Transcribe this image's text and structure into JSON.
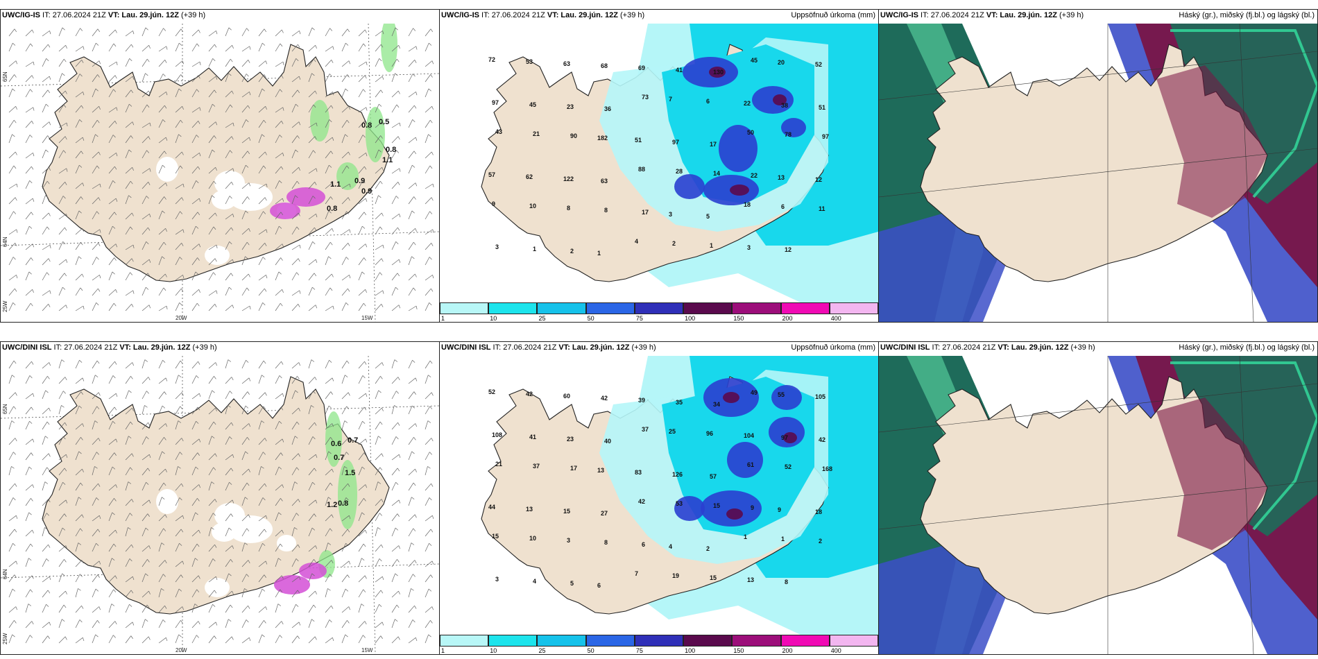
{
  "rows": [
    {
      "model": "UWC/IG-IS",
      "wind": {
        "model": "UWC/IG-IS",
        "info": " IT: 27.06.2024 21Z ",
        "vt_label": "VT: Lau. 29.jún. 12Z",
        "lead": " (+39 h)",
        "ticks_x": [
          "20W",
          "15W"
        ],
        "ticks_y": [
          "65N",
          "64N",
          "25W"
        ],
        "gust_labels": [
          "0.8",
          "0.5",
          "0.8",
          "1.1",
          "0.9",
          "0.8",
          "1.1",
          "0.9"
        ]
      },
      "precip": {
        "model": "UWC/IG-IS",
        "info": " IT: 27.06.2024 21Z ",
        "vt_label": "VT: Lau. 29.jún. 12Z",
        "lead": " (+39 h)",
        "right_title": "Uppsöfnuð úrkoma (mm)",
        "values": [
          "72",
          "53",
          "63",
          "68",
          "69",
          "41",
          "130",
          "45",
          "20",
          "52",
          "97",
          "45",
          "23",
          "36",
          "73",
          "7",
          "6",
          "22",
          "38",
          "51",
          "43",
          "21",
          "90",
          "182",
          "51",
          "97",
          "17",
          "50",
          "78",
          "97",
          "57",
          "62",
          "122",
          "63",
          "88",
          "28",
          "14",
          "22",
          "13",
          "12",
          "9",
          "10",
          "8",
          "8",
          "17",
          "3",
          "5",
          "18",
          "6",
          "11",
          "3",
          "1",
          "2",
          "1",
          "4",
          "2",
          "1",
          "3",
          "12"
        ]
      },
      "clouds": {
        "model": "UWC/IG-IS",
        "info": " IT: 27.06.2024 21Z ",
        "vt_label": "VT: Lau. 29.jún. 12Z",
        "lead": " (+39 h)",
        "right_title": "Háský (gr.), miðský (fj.bl.) og lágský (bl.)"
      }
    },
    {
      "model": "UWC/DINI ISL",
      "wind": {
        "model": "UWC/DINI ISL",
        "info": " IT: 27.06.2024 21Z ",
        "vt_label": "VT: Lau. 29.jún. 12Z",
        "lead": " (+39 h)",
        "ticks_x": [
          "20W",
          "15W"
        ],
        "ticks_y": [
          "65N",
          "64N",
          "25W"
        ],
        "gust_labels": [
          "0.6",
          "0.7",
          "0.7",
          "1.5",
          "1.2",
          "0.8"
        ]
      },
      "precip": {
        "model": "UWC/DINI ISL",
        "info": " IT: 27.06.2024 21Z ",
        "vt_label": "VT: Lau. 29.jún. 12Z",
        "lead": " (+39 h)",
        "right_title": "Uppsöfnuð úrkoma (mm)",
        "values": [
          "52",
          "42",
          "60",
          "42",
          "39",
          "35",
          "34",
          "49",
          "55",
          "105",
          "108",
          "41",
          "23",
          "40",
          "37",
          "25",
          "96",
          "104",
          "97",
          "42",
          "21",
          "37",
          "17",
          "13",
          "83",
          "126",
          "57",
          "61",
          "52",
          "168",
          "44",
          "13",
          "15",
          "27",
          "42",
          "53",
          "15",
          "9",
          "9",
          "18",
          "15",
          "10",
          "3",
          "8",
          "6",
          "4",
          "2",
          "1",
          "1",
          "2",
          "3",
          "4",
          "5",
          "6",
          "7",
          "19",
          "15",
          "13",
          "8"
        ]
      },
      "clouds": {
        "model": "UWC/DINI ISL",
        "info": " IT: 27.06.2024 21Z ",
        "vt_label": "VT: Lau. 29.jún. 12Z",
        "lead": " (+39 h)",
        "right_title": "Háský (gr.), miðský (fj.bl.) og lágský (bl.)"
      }
    }
  ],
  "legend": {
    "labels": [
      "1",
      "10",
      "25",
      "50",
      "75",
      "100",
      "150",
      "200",
      "400"
    ],
    "colors": [
      "#b8f7f7",
      "#1de4ec",
      "#16c2ea",
      "#2b66e6",
      "#2f2fb8",
      "#5a0a4d",
      "#9c0e7a",
      "#f00ab4",
      "#f3b6f0"
    ]
  },
  "colors": {
    "land": "#efe1cf",
    "coast": "#222222",
    "precip_light": "#b5f6f8",
    "precip_mid": "#18d8ec",
    "precip_heavy": "#2a3fd0",
    "high_cloud": "#1e6b5a",
    "mid_cloud": "#7a1443",
    "low_cloud": "#3c4fc8",
    "gust_green": "#8ee68a",
    "gust_magenta": "#d44fd6"
  }
}
